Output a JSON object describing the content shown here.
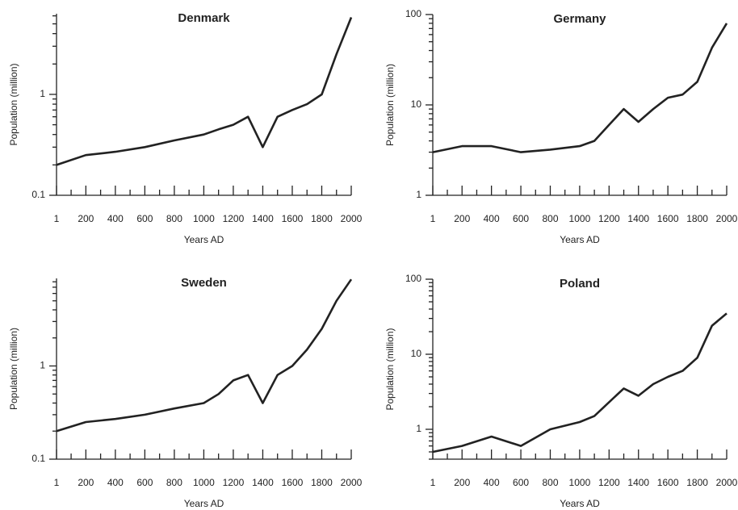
{
  "chart_data": [
    {
      "type": "line",
      "title": "Denmark",
      "x_label": "Years AD",
      "y_label": "Population (million)",
      "log_y": true,
      "color": "#222222",
      "x": [
        1,
        200,
        400,
        600,
        800,
        1000,
        1100,
        1200,
        1300,
        1400,
        1500,
        1600,
        1700,
        1800,
        1900,
        2000
      ],
      "values": [
        0.2,
        0.25,
        0.27,
        0.3,
        0.35,
        0.4,
        0.45,
        0.5,
        0.6,
        0.3,
        0.6,
        0.7,
        0.8,
        1.0,
        2.5,
        5.8
      ],
      "xlim": [
        1,
        2000
      ],
      "xticks": [
        1,
        200,
        400,
        600,
        800,
        1000,
        1200,
        1400,
        1600,
        1800,
        2000
      ],
      "xminor_ticks": [
        100,
        300,
        500,
        700,
        900,
        1100,
        1300,
        1500,
        1700,
        1900
      ],
      "ylim": [
        0.1,
        6.3
      ],
      "yticks": [
        0.1,
        1
      ],
      "yminor_ticks": [
        0.2,
        0.3,
        0.4,
        0.5,
        0.6,
        0.7,
        0.8,
        0.9,
        2,
        3,
        4,
        5,
        6
      ]
    },
    {
      "type": "line",
      "title": "Germany",
      "x_label": "Years AD",
      "y_label": "Population (million)",
      "log_y": true,
      "color": "#222222",
      "x": [
        1,
        200,
        400,
        600,
        800,
        1000,
        1100,
        1200,
        1300,
        1400,
        1500,
        1600,
        1700,
        1800,
        1900,
        2000
      ],
      "values": [
        3,
        3.5,
        3.5,
        3,
        3.2,
        3.5,
        4,
        6,
        9,
        6.5,
        9,
        12,
        13,
        18,
        43,
        80
      ],
      "xlim": [
        1,
        2000
      ],
      "xticks": [
        1,
        200,
        400,
        600,
        800,
        1000,
        1200,
        1400,
        1600,
        1800,
        2000
      ],
      "xminor_ticks": [
        100,
        300,
        500,
        700,
        900,
        1100,
        1300,
        1500,
        1700,
        1900
      ],
      "ylim": [
        1,
        100
      ],
      "yticks": [
        1,
        10,
        100
      ],
      "yminor_ticks": [
        2,
        3,
        4,
        5,
        6,
        7,
        8,
        9,
        20,
        30,
        40,
        50,
        60,
        70,
        80,
        90
      ]
    },
    {
      "type": "line",
      "title": "Sweden",
      "x_label": "Years AD",
      "y_label": "Population (million)",
      "log_y": true,
      "color": "#222222",
      "x": [
        1,
        200,
        400,
        600,
        800,
        1000,
        1100,
        1200,
        1300,
        1400,
        1500,
        1600,
        1700,
        1800,
        1900,
        2000
      ],
      "values": [
        0.2,
        0.25,
        0.27,
        0.3,
        0.35,
        0.4,
        0.5,
        0.7,
        0.8,
        0.4,
        0.8,
        1.0,
        1.5,
        2.5,
        5,
        8.5
      ],
      "xlim": [
        1,
        2000
      ],
      "xticks": [
        1,
        200,
        400,
        600,
        800,
        1000,
        1200,
        1400,
        1600,
        1800,
        2000
      ],
      "xminor_ticks": [
        100,
        300,
        500,
        700,
        900,
        1100,
        1300,
        1500,
        1700,
        1900
      ],
      "ylim": [
        0.1,
        8.7
      ],
      "yticks": [
        0.1,
        1
      ],
      "yminor_ticks": [
        0.2,
        0.3,
        0.4,
        0.5,
        0.6,
        0.7,
        0.8,
        0.9,
        2,
        3,
        4,
        5,
        6,
        7,
        8
      ]
    },
    {
      "type": "line",
      "title": "Poland",
      "x_label": "Years AD",
      "y_label": "Population (million)",
      "log_y": true,
      "color": "#222222",
      "x": [
        1,
        200,
        400,
        600,
        800,
        1000,
        1100,
        1200,
        1300,
        1400,
        1500,
        1600,
        1700,
        1800,
        1900,
        2000
      ],
      "values": [
        0.5,
        0.6,
        0.8,
        0.6,
        1.0,
        1.25,
        1.5,
        2.3,
        3.5,
        2.8,
        4,
        5,
        6,
        9,
        24,
        35
      ],
      "xlim": [
        1,
        2000
      ],
      "xticks": [
        1,
        200,
        400,
        600,
        800,
        1000,
        1200,
        1400,
        1600,
        1800,
        2000
      ],
      "xminor_ticks": [
        100,
        300,
        500,
        700,
        900,
        1100,
        1300,
        1500,
        1700,
        1900
      ],
      "ylim": [
        0.4,
        100
      ],
      "yticks": [
        1,
        10,
        100
      ],
      "yminor_ticks": [
        0.4,
        0.5,
        0.6,
        0.7,
        0.8,
        0.9,
        2,
        3,
        4,
        5,
        6,
        7,
        8,
        9,
        20,
        30,
        40,
        50,
        60,
        70,
        80,
        90
      ]
    }
  ]
}
